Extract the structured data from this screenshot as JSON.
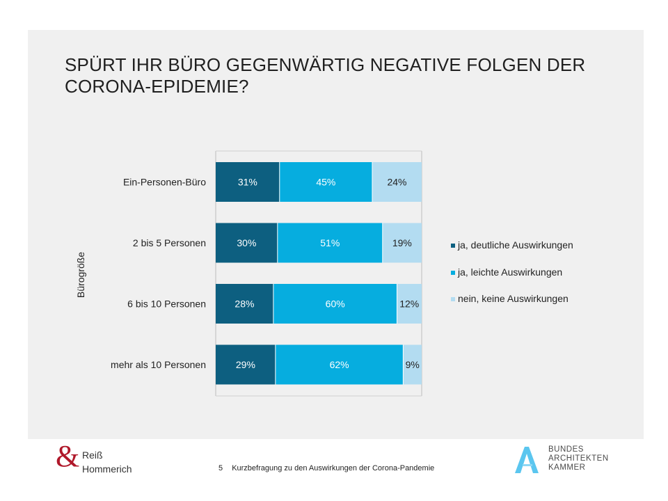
{
  "title": "SPÜRT IHR BÜRO GEGENWÄRTIG NEGATIVE FOLGEN DER CORONA-EPIDEMIE?",
  "chart_data": {
    "type": "bar",
    "orientation": "horizontal",
    "stacked": true,
    "percent": true,
    "ylabel": "Bürogröße",
    "categories": [
      "Ein-Personen-Büro",
      "2 bis 5 Personen",
      "6 bis 10 Personen",
      "mehr als 10 Personen"
    ],
    "series": [
      {
        "name": "ja, deutliche Auswirkungen",
        "values": [
          31,
          30,
          28,
          29
        ],
        "color": "#0d5f80",
        "label_color": "#ffffff"
      },
      {
        "name": "ja, leichte Auswirkungen",
        "values": [
          45,
          51,
          60,
          62
        ],
        "color": "#06addf",
        "label_color": "#ffffff"
      },
      {
        "name": "nein, keine Auswirkungen",
        "values": [
          24,
          19,
          12,
          9
        ],
        "color": "#b3dcf1",
        "label_color": "#222222"
      }
    ],
    "data_labels": [
      [
        "31%",
        "30%",
        "28%",
        "29%"
      ],
      [
        "45%",
        "51%",
        "60%",
        "62%"
      ],
      [
        "24%",
        "19%",
        "12%",
        "9%"
      ]
    ],
    "xlim": [
      0,
      100
    ],
    "legend_position": "right"
  },
  "footer": {
    "page_number": "5",
    "text": "Kurzbefragung zu den Auswirkungen der Corona-Pandemie",
    "left_logo": {
      "symbol": "&",
      "line1": "Reiß",
      "line2": "Hommerich"
    },
    "right_logo": {
      "line1": "BUNDES",
      "line2": "ARCHITEKTEN",
      "line3": "KAMMER"
    }
  },
  "colors": {
    "panel": "#f0f0f0",
    "brand_red": "#b0182a",
    "bak_blue": "#5bc6ef"
  }
}
